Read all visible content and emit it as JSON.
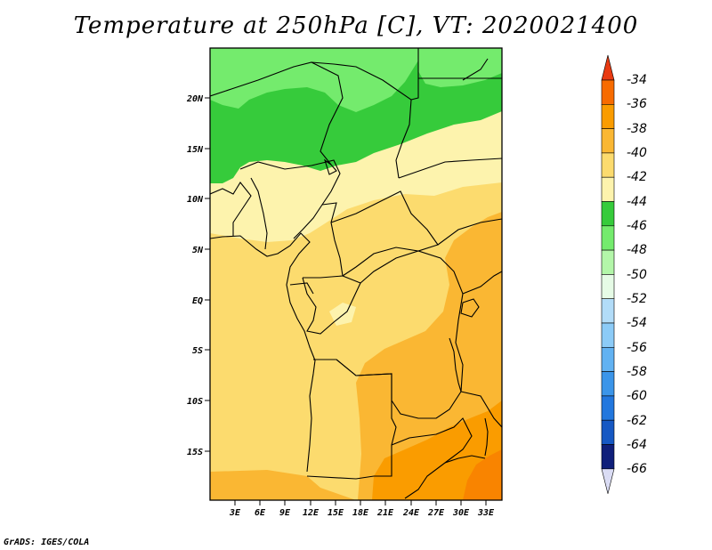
{
  "title": "Temperature at 250hPa [C], VT: 2020021400",
  "credit": "GrADS: IGES/COLA",
  "lat_labels": [
    "20N",
    "15N",
    "10N",
    "5N",
    "EQ",
    "5S",
    "10S",
    "15S"
  ],
  "lon_labels": [
    "3E",
    "6E",
    "9E",
    "12E",
    "15E",
    "18E",
    "21E",
    "24E",
    "27E",
    "30E",
    "33E"
  ],
  "colorbar": {
    "labels": [
      "-34",
      "-36",
      "-38",
      "-40",
      "-42",
      "-44",
      "-46",
      "-48",
      "-50",
      "-52",
      "-54",
      "-56",
      "-58",
      "-60",
      "-62",
      "-64",
      "-66"
    ],
    "colors": [
      "#e83a12",
      "#f76b00",
      "#fa9c00",
      "#fab733",
      "#fcdb6e",
      "#fdf3ad",
      "#36cb3b",
      "#74eb6d",
      "#b3f6a9",
      "#e6fbe6",
      "#b2dcf8",
      "#8ccbf7",
      "#62b2f2",
      "#3b95e9",
      "#2277de",
      "#1658c3",
      "#0f1f7a",
      "#dadcf4"
    ]
  },
  "legend": {
    "green": "#36cb3b",
    "orange": "#fa9c00"
  }
}
